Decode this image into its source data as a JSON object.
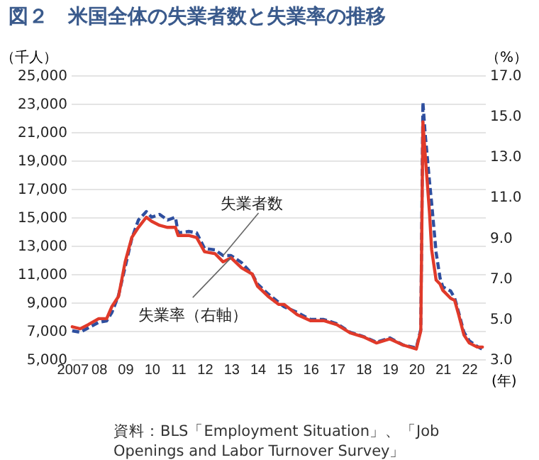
{
  "chart_data": {
    "type": "line",
    "title": "図２　米国全体の失業者数と失業率の推移",
    "xlabel": "(年)",
    "ylabel": "（千人）",
    "y2label": "（%）",
    "x": [
      2007.0,
      2007.3,
      2007.6,
      2008.0,
      2008.3,
      2008.5,
      2008.75,
      2009.0,
      2009.25,
      2009.5,
      2009.8,
      2010.0,
      2010.3,
      2010.6,
      2010.9,
      2011.0,
      2011.4,
      2011.7,
      2012.0,
      2012.4,
      2012.7,
      2013.0,
      2013.4,
      2013.8,
      2014.0,
      2014.4,
      2014.8,
      2015.0,
      2015.5,
      2016.0,
      2016.5,
      2017.0,
      2017.5,
      2018.0,
      2018.5,
      2019.0,
      2019.5,
      2020.0,
      2020.17,
      2020.25,
      2020.33,
      2020.5,
      2020.58,
      2020.75,
      2020.9,
      2021.0,
      2021.3,
      2021.45,
      2021.6,
      2021.8,
      2022.0,
      2022.3,
      2022.5
    ],
    "series": [
      {
        "name": "失業者数",
        "color": "#2f4f9f",
        "line_style": "dashed",
        "values": [
          7000,
          6900,
          7200,
          7600,
          7700,
          8300,
          9500,
          11500,
          13500,
          14800,
          15400,
          15000,
          15200,
          14800,
          15000,
          13900,
          14000,
          13900,
          12800,
          12700,
          12300,
          12300,
          11800,
          11000,
          10300,
          9600,
          9000,
          8700,
          8300,
          7800,
          7800,
          7500,
          6900,
          6600,
          6200,
          6500,
          6000,
          5800,
          7100,
          23100,
          21000,
          17500,
          16000,
          12500,
          10700,
          10100,
          9800,
          9300,
          8300,
          6900,
          6300,
          5900,
          5700
        ]
      },
      {
        "name": "失業率（右軸）",
        "color": "#e03a2a",
        "line_style": "solid",
        "axis": "y2",
        "values": [
          4.6,
          4.5,
          4.7,
          5.0,
          5.0,
          5.6,
          6.1,
          7.8,
          9.0,
          9.5,
          10.0,
          9.8,
          9.6,
          9.5,
          9.5,
          9.1,
          9.1,
          9.0,
          8.3,
          8.2,
          7.8,
          8.0,
          7.5,
          7.2,
          6.6,
          6.1,
          5.7,
          5.7,
          5.2,
          4.9,
          4.9,
          4.7,
          4.3,
          4.1,
          3.8,
          4.0,
          3.7,
          3.5,
          4.4,
          14.7,
          13.2,
          10.2,
          8.4,
          6.9,
          6.7,
          6.4,
          6.0,
          5.9,
          5.2,
          4.2,
          3.8,
          3.6,
          3.6
        ]
      }
    ],
    "xlim": [
      2006.95,
      2022.6
    ],
    "xticks": [
      {
        "value": 2007,
        "label": "2007"
      },
      {
        "value": 2008,
        "label": "08"
      },
      {
        "value": 2009,
        "label": "09"
      },
      {
        "value": 2010,
        "label": "10"
      },
      {
        "value": 2011,
        "label": "11"
      },
      {
        "value": 2012,
        "label": "12"
      },
      {
        "value": 2013,
        "label": "13"
      },
      {
        "value": 2014,
        "label": "14"
      },
      {
        "value": 2015,
        "label": "15"
      },
      {
        "value": 2016,
        "label": "16"
      },
      {
        "value": 2017,
        "label": "17"
      },
      {
        "value": 2018,
        "label": "18"
      },
      {
        "value": 2019,
        "label": "19"
      },
      {
        "value": 2020,
        "label": "20"
      },
      {
        "value": 2021,
        "label": "21"
      },
      {
        "value": 2022,
        "label": "22"
      }
    ],
    "ylim": [
      5000,
      25000
    ],
    "yticks": [
      {
        "value": 5000,
        "label": "5,000"
      },
      {
        "value": 7000,
        "label": "7,000"
      },
      {
        "value": 9000,
        "label": "9,000"
      },
      {
        "value": 11000,
        "label": "11,000"
      },
      {
        "value": 13000,
        "label": "13,000"
      },
      {
        "value": 15000,
        "label": "15,000"
      },
      {
        "value": 17000,
        "label": "17,000"
      },
      {
        "value": 19000,
        "label": "19,000"
      },
      {
        "value": 21000,
        "label": "21,000"
      },
      {
        "value": 23000,
        "label": "23,000"
      },
      {
        "value": 25000,
        "label": "25,000"
      }
    ],
    "y2lim": [
      3,
      17
    ],
    "y2ticks": [
      {
        "value": 3,
        "label": "3.0"
      },
      {
        "value": 5,
        "label": "5.0"
      },
      {
        "value": 7,
        "label": "7.0"
      },
      {
        "value": 9,
        "label": "9.0"
      },
      {
        "value": 11,
        "label": "11.0"
      },
      {
        "value": 13,
        "label": "13.0"
      },
      {
        "value": 15,
        "label": "15.0"
      },
      {
        "value": 17,
        "label": "17.0"
      }
    ],
    "grid": "y",
    "annotations": [
      "資料：BLS「Employment Situation」、「Job Openings and Labor Turnover Survey」"
    ]
  }
}
